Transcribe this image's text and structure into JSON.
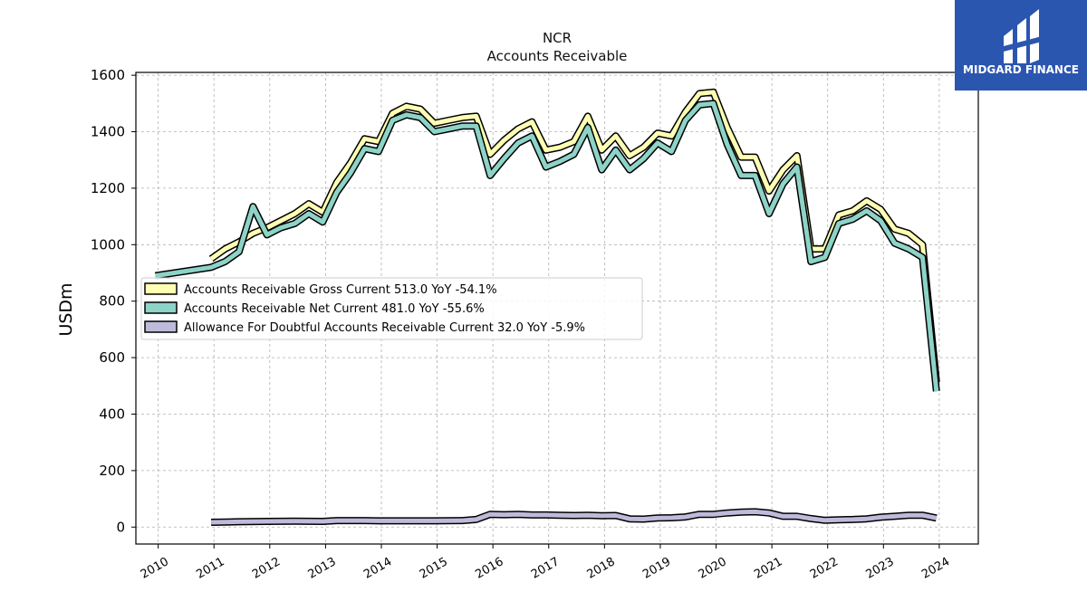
{
  "brand": {
    "name": "MIDGARD FINANCE",
    "bg_color": "#2a56b0"
  },
  "chart_data": {
    "type": "line",
    "title": "NCR",
    "subtitle": "Accounts Receivable",
    "ylabel": "USDm",
    "xlabel": "",
    "xlim": [
      2009.6,
      2024.7
    ],
    "ylim": [
      -60,
      1610
    ],
    "yticks": [
      0,
      200,
      400,
      600,
      800,
      1000,
      1200,
      1400,
      1600
    ],
    "xticks": [
      2010,
      2011,
      2012,
      2013,
      2014,
      2015,
      2016,
      2017,
      2018,
      2019,
      2020,
      2021,
      2022,
      2023,
      2024
    ],
    "grid": true,
    "legend_position": "center-left",
    "series": [
      {
        "name": "Accounts Receivable Gross Current",
        "legend_label": "Accounts Receivable Gross Current  513.0 YoY -54.1%",
        "color": "#ffffb3",
        "points": [
          [
            2010.95,
            950
          ],
          [
            2011.2,
            985
          ],
          [
            2011.45,
            1010
          ],
          [
            2011.7,
            1040
          ],
          [
            2011.95,
            1060
          ],
          [
            2012.2,
            1085
          ],
          [
            2012.45,
            1110
          ],
          [
            2012.7,
            1145
          ],
          [
            2012.95,
            1115
          ],
          [
            2013.2,
            1220
          ],
          [
            2013.45,
            1290
          ],
          [
            2013.7,
            1375
          ],
          [
            2013.95,
            1365
          ],
          [
            2014.2,
            1465
          ],
          [
            2014.45,
            1490
          ],
          [
            2014.7,
            1480
          ],
          [
            2014.95,
            1430
          ],
          [
            2015.2,
            1440
          ],
          [
            2015.45,
            1450
          ],
          [
            2015.7,
            1455
          ],
          [
            2015.95,
            1320
          ],
          [
            2016.2,
            1370
          ],
          [
            2016.45,
            1410
          ],
          [
            2016.7,
            1435
          ],
          [
            2016.95,
            1335
          ],
          [
            2017.2,
            1345
          ],
          [
            2017.45,
            1365
          ],
          [
            2017.7,
            1455
          ],
          [
            2017.95,
            1335
          ],
          [
            2018.2,
            1385
          ],
          [
            2018.45,
            1315
          ],
          [
            2018.7,
            1345
          ],
          [
            2018.95,
            1395
          ],
          [
            2019.2,
            1385
          ],
          [
            2019.45,
            1470
          ],
          [
            2019.7,
            1535
          ],
          [
            2019.95,
            1540
          ],
          [
            2020.2,
            1415
          ],
          [
            2020.45,
            1310
          ],
          [
            2020.7,
            1310
          ],
          [
            2020.95,
            1190
          ],
          [
            2021.2,
            1265
          ],
          [
            2021.45,
            1315
          ],
          [
            2021.7,
            985
          ],
          [
            2021.95,
            985
          ],
          [
            2022.2,
            1105
          ],
          [
            2022.45,
            1120
          ],
          [
            2022.7,
            1155
          ],
          [
            2022.95,
            1125
          ],
          [
            2023.2,
            1055
          ],
          [
            2023.45,
            1040
          ],
          [
            2023.7,
            1000
          ],
          [
            2023.95,
            513
          ]
        ]
      },
      {
        "name": "Accounts Receivable Net Current",
        "legend_label": "Accounts Receivable Net Current  481.0 YoY -55.6%",
        "color": "#8dd3c7",
        "points": [
          [
            2009.95,
            890
          ],
          [
            2010.95,
            920
          ],
          [
            2011.2,
            940
          ],
          [
            2011.45,
            975
          ],
          [
            2011.7,
            1135
          ],
          [
            2011.95,
            1035
          ],
          [
            2012.2,
            1060
          ],
          [
            2012.45,
            1075
          ],
          [
            2012.7,
            1110
          ],
          [
            2012.95,
            1080
          ],
          [
            2013.2,
            1185
          ],
          [
            2013.45,
            1255
          ],
          [
            2013.7,
            1340
          ],
          [
            2013.95,
            1330
          ],
          [
            2014.2,
            1440
          ],
          [
            2014.45,
            1460
          ],
          [
            2014.7,
            1450
          ],
          [
            2014.95,
            1400
          ],
          [
            2015.2,
            1410
          ],
          [
            2015.45,
            1420
          ],
          [
            2015.7,
            1420
          ],
          [
            2015.95,
            1245
          ],
          [
            2016.2,
            1305
          ],
          [
            2016.45,
            1360
          ],
          [
            2016.7,
            1385
          ],
          [
            2016.95,
            1275
          ],
          [
            2017.2,
            1295
          ],
          [
            2017.45,
            1320
          ],
          [
            2017.7,
            1415
          ],
          [
            2017.95,
            1265
          ],
          [
            2018.2,
            1335
          ],
          [
            2018.45,
            1265
          ],
          [
            2018.7,
            1305
          ],
          [
            2018.95,
            1360
          ],
          [
            2019.2,
            1330
          ],
          [
            2019.45,
            1440
          ],
          [
            2019.7,
            1495
          ],
          [
            2019.95,
            1500
          ],
          [
            2020.2,
            1355
          ],
          [
            2020.45,
            1245
          ],
          [
            2020.7,
            1245
          ],
          [
            2020.95,
            1110
          ],
          [
            2021.2,
            1215
          ],
          [
            2021.45,
            1275
          ],
          [
            2021.7,
            940
          ],
          [
            2021.95,
            955
          ],
          [
            2022.2,
            1075
          ],
          [
            2022.45,
            1090
          ],
          [
            2022.7,
            1120
          ],
          [
            2022.95,
            1085
          ],
          [
            2023.2,
            1005
          ],
          [
            2023.45,
            985
          ],
          [
            2023.7,
            955
          ],
          [
            2023.95,
            481
          ]
        ]
      },
      {
        "name": "Allowance For Doubtful Accounts Receivable Current",
        "legend_label": "Allowance For Doubtful Accounts Receivable Current  32.0 YoY -5.9%",
        "color": "#bebada",
        "points": [
          [
            2010.95,
            17
          ],
          [
            2011.45,
            19
          ],
          [
            2011.95,
            20
          ],
          [
            2012.45,
            21
          ],
          [
            2012.95,
            20
          ],
          [
            2013.2,
            23
          ],
          [
            2013.7,
            23
          ],
          [
            2013.95,
            22
          ],
          [
            2014.45,
            22
          ],
          [
            2014.95,
            22
          ],
          [
            2015.45,
            23
          ],
          [
            2015.7,
            27
          ],
          [
            2015.95,
            45
          ],
          [
            2016.2,
            44
          ],
          [
            2016.45,
            45
          ],
          [
            2016.7,
            43
          ],
          [
            2016.95,
            43
          ],
          [
            2017.2,
            42
          ],
          [
            2017.45,
            41
          ],
          [
            2017.7,
            42
          ],
          [
            2017.95,
            40
          ],
          [
            2018.2,
            41
          ],
          [
            2018.45,
            29
          ],
          [
            2018.7,
            28
          ],
          [
            2018.95,
            32
          ],
          [
            2019.2,
            33
          ],
          [
            2019.45,
            36
          ],
          [
            2019.7,
            45
          ],
          [
            2019.95,
            45
          ],
          [
            2020.2,
            50
          ],
          [
            2020.45,
            53
          ],
          [
            2020.7,
            54
          ],
          [
            2020.95,
            50
          ],
          [
            2021.2,
            38
          ],
          [
            2021.45,
            38
          ],
          [
            2021.7,
            30
          ],
          [
            2021.95,
            24
          ],
          [
            2022.2,
            26
          ],
          [
            2022.45,
            27
          ],
          [
            2022.7,
            29
          ],
          [
            2022.95,
            35
          ],
          [
            2023.2,
            38
          ],
          [
            2023.45,
            42
          ],
          [
            2023.7,
            42
          ],
          [
            2023.95,
            32
          ]
        ]
      }
    ]
  }
}
